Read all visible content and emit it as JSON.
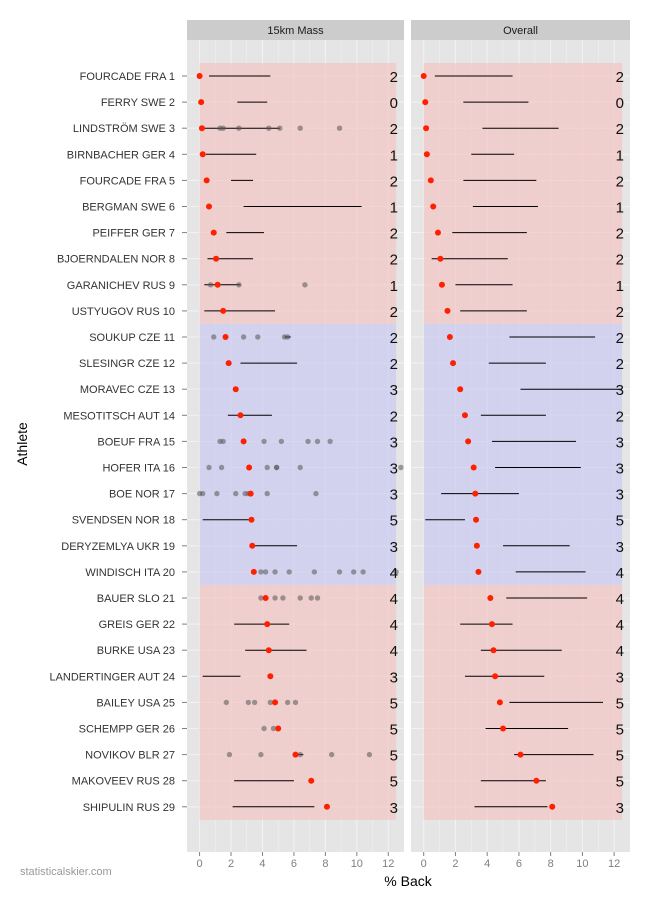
{
  "chart_data": {
    "type": "scatter",
    "title": "",
    "xlabel": "% Back",
    "ylabel": "Athlete",
    "xlim": [
      -0.8,
      13.0
    ],
    "xticks": [
      0,
      2,
      4,
      6,
      8,
      10,
      12
    ],
    "facets": [
      "15km Mass",
      "Overall"
    ],
    "legend": "none",
    "colors": {
      "panel_bg": "#e5e5e5",
      "grid": "#f2f2f2",
      "strip_bg": "#cccccc",
      "band_red": "#f4c2c2",
      "band_blue": "#c7c7f2",
      "highlight_point": "#ff2000",
      "past_point": "#555555",
      "range_line": "#000000"
    },
    "bands": [
      {
        "color": "red",
        "from_rank": 1,
        "to_rank": 10
      },
      {
        "color": "blue",
        "from_rank": 11,
        "to_rank": 20
      },
      {
        "color": "red",
        "from_rank": 21,
        "to_rank": 29
      }
    ],
    "athletes": [
      {
        "label": "FOURCADE FRA 1",
        "count": "2",
        "mass": {
          "value": 0.0,
          "range": [
            0.6,
            4.5
          ],
          "past": [
            0.0,
            0.0
          ]
        },
        "overall": {
          "value": 0.0,
          "range": [
            0.7,
            5.6
          ]
        }
      },
      {
        "label": "FERRY SWE 2",
        "count": "0",
        "mass": {
          "value": 0.1,
          "range": [
            2.4,
            4.3
          ],
          "past": []
        },
        "overall": {
          "value": 0.1,
          "range": [
            2.5,
            6.6
          ]
        }
      },
      {
        "label": "LINDSTRÖM SWE 3",
        "count": "2",
        "mass": {
          "value": 0.15,
          "range": [
            0.3,
            5.1
          ],
          "past": [
            0.15,
            1.3,
            1.5,
            2.5,
            4.4,
            5.1,
            6.4,
            8.9
          ]
        },
        "overall": {
          "value": 0.15,
          "range": [
            3.7,
            8.5
          ]
        }
      },
      {
        "label": "BIRNBACHER GER 4",
        "count": "1",
        "mass": {
          "value": 0.2,
          "range": [
            0.4,
            3.6
          ],
          "past": [
            0.2
          ]
        },
        "overall": {
          "value": 0.2,
          "range": [
            3.0,
            5.7
          ]
        }
      },
      {
        "label": "FOURCADE FRA 5",
        "count": "2",
        "mass": {
          "value": 0.45,
          "range": [
            2.0,
            3.4
          ],
          "past": [
            0.45
          ]
        },
        "overall": {
          "value": 0.45,
          "range": [
            2.5,
            7.1
          ]
        }
      },
      {
        "label": "BERGMAN SWE 6",
        "count": "1",
        "mass": {
          "value": 0.6,
          "range": [
            2.8,
            10.3
          ],
          "past": [
            0.6
          ]
        },
        "overall": {
          "value": 0.6,
          "range": [
            3.1,
            7.2
          ]
        }
      },
      {
        "label": "PEIFFER GER 7",
        "count": "2",
        "mass": {
          "value": 0.9,
          "range": [
            1.7,
            4.1
          ],
          "past": [
            0.9
          ]
        },
        "overall": {
          "value": 0.9,
          "range": [
            1.8,
            6.5
          ]
        }
      },
      {
        "label": "BJOERNDALEN NOR 8",
        "count": "2",
        "mass": {
          "value": 1.05,
          "range": [
            0.5,
            3.4
          ],
          "past": [
            1.05
          ]
        },
        "overall": {
          "value": 1.05,
          "range": [
            0.5,
            5.3
          ]
        }
      },
      {
        "label": "GARANICHEV RUS 9",
        "count": "1",
        "mass": {
          "value": 1.15,
          "range": [
            0.3,
            2.6
          ],
          "past": [
            0.7,
            1.15,
            2.5,
            6.7
          ]
        },
        "overall": {
          "value": 1.15,
          "range": [
            2.0,
            5.6
          ]
        }
      },
      {
        "label": "USTYUGOV RUS 10",
        "count": "2",
        "mass": {
          "value": 1.5,
          "range": [
            0.3,
            4.8
          ],
          "past": [
            1.5
          ]
        },
        "overall": {
          "value": 1.5,
          "range": [
            2.3,
            6.5
          ]
        }
      },
      {
        "label": "SOUKUP CZE 11",
        "count": "2",
        "mass": {
          "value": 1.65,
          "range": [
            5.4,
            5.8
          ],
          "past": [
            0.9,
            1.65,
            2.8,
            3.7,
            5.4,
            5.6
          ]
        },
        "overall": {
          "value": 1.65,
          "range": [
            5.4,
            10.8
          ]
        }
      },
      {
        "label": "SLESINGR CZE 12",
        "count": "2",
        "mass": {
          "value": 1.85,
          "range": [
            2.6,
            6.2
          ],
          "past": [
            1.85
          ]
        },
        "overall": {
          "value": 1.85,
          "range": [
            4.1,
            7.7
          ]
        }
      },
      {
        "label": "MORAVEC CZE 13",
        "count": "3",
        "mass": {
          "value": 2.3,
          "range": [
            2.3,
            2.3
          ],
          "past": [
            2.3
          ]
        },
        "overall": {
          "value": 2.3,
          "range": [
            6.1,
            12.5
          ]
        }
      },
      {
        "label": "MESOTITSCH AUT 14",
        "count": "2",
        "mass": {
          "value": 2.6,
          "range": [
            1.8,
            4.6
          ],
          "past": [
            2.6
          ]
        },
        "overall": {
          "value": 2.6,
          "range": [
            3.6,
            7.7
          ]
        }
      },
      {
        "label": "BOEUF FRA 15",
        "count": "3",
        "mass": {
          "value": 2.8,
          "range": [
            2.8,
            2.8
          ],
          "past": [
            1.3,
            1.5,
            2.8,
            4.1,
            5.2,
            6.9,
            7.5,
            8.3
          ]
        },
        "overall": {
          "value": 2.8,
          "range": [
            4.3,
            9.6
          ]
        }
      },
      {
        "label": "HOFER ITA 16",
        "count": "3",
        "mass": {
          "value": 3.15,
          "range": [
            3.15,
            3.15
          ],
          "past": [
            0.6,
            1.4,
            3.15,
            4.3,
            4.9,
            4.9,
            6.4,
            12.8
          ]
        },
        "overall": {
          "value": 3.15,
          "range": [
            4.5,
            9.9
          ]
        }
      },
      {
        "label": "BOE NOR 17",
        "count": "3",
        "mass": {
          "value": 3.25,
          "range": [
            3.25,
            3.25
          ],
          "past": [
            0.0,
            0.2,
            1.1,
            2.3,
            2.9,
            3.1,
            3.25,
            4.3,
            7.4
          ]
        },
        "overall": {
          "value": 3.25,
          "range": [
            1.1,
            6.0
          ]
        }
      },
      {
        "label": "SVENDSEN NOR 18",
        "count": "5",
        "mass": {
          "value": 3.3,
          "range": [
            0.2,
            3.4
          ],
          "past": [
            3.3
          ]
        },
        "overall": {
          "value": 3.3,
          "range": [
            0.1,
            2.6
          ]
        }
      },
      {
        "label": "DERYZEMLYA UKR 19",
        "count": "3",
        "mass": {
          "value": 3.35,
          "range": [
            3.2,
            6.2
          ],
          "past": [
            3.35
          ]
        },
        "overall": {
          "value": 3.35,
          "range": [
            5.0,
            9.2
          ]
        }
      },
      {
        "label": "WINDISCH ITA 20",
        "count": "4",
        "mass": {
          "value": 3.45,
          "range": [
            3.45,
            3.45
          ],
          "past": [
            3.45,
            3.9,
            4.2,
            4.8,
            5.7,
            7.3,
            8.9,
            9.8,
            10.4,
            12.5
          ]
        },
        "overall": {
          "value": 3.45,
          "range": [
            5.8,
            10.2
          ]
        }
      },
      {
        "label": "BAUER SLO 21",
        "count": "4",
        "mass": {
          "value": 4.2,
          "range": [
            4.0,
            4.3
          ],
          "past": [
            3.9,
            4.2,
            4.8,
            5.3,
            6.4,
            7.1,
            7.5
          ]
        },
        "overall": {
          "value": 4.2,
          "range": [
            5.2,
            10.3
          ]
        }
      },
      {
        "label": "GREIS GER 22",
        "count": "4",
        "mass": {
          "value": 4.3,
          "range": [
            2.2,
            5.7
          ],
          "past": [
            4.3
          ]
        },
        "overall": {
          "value": 4.3,
          "range": [
            2.3,
            5.6
          ]
        }
      },
      {
        "label": "BURKE USA 23",
        "count": "4",
        "mass": {
          "value": 4.4,
          "range": [
            2.9,
            6.8
          ],
          "past": [
            4.4
          ]
        },
        "overall": {
          "value": 4.4,
          "range": [
            3.6,
            8.7
          ]
        }
      },
      {
        "label": "LANDERTINGER AUT 24",
        "count": "3",
        "mass": {
          "value": 4.5,
          "range": [
            0.2,
            2.6
          ],
          "past": [
            4.5
          ]
        },
        "overall": {
          "value": 4.5,
          "range": [
            2.6,
            7.6
          ]
        }
      },
      {
        "label": "BAILEY USA 25",
        "count": "5",
        "mass": {
          "value": 4.8,
          "range": [
            4.8,
            4.8
          ],
          "past": [
            1.7,
            3.1,
            3.5,
            4.5,
            4.8,
            5.6,
            6.1
          ]
        },
        "overall": {
          "value": 4.8,
          "range": [
            5.4,
            11.3
          ]
        }
      },
      {
        "label": "SCHEMPP GER 26",
        "count": "5",
        "mass": {
          "value": 5.0,
          "range": [
            5.0,
            5.0
          ],
          "past": [
            4.1,
            4.7,
            5.0
          ]
        },
        "overall": {
          "value": 5.0,
          "range": [
            3.9,
            9.1
          ]
        }
      },
      {
        "label": "NOVIKOV BLR 27",
        "count": "5",
        "mass": {
          "value": 6.1,
          "range": [
            6.1,
            6.6
          ],
          "past": [
            1.9,
            3.9,
            6.1,
            6.4,
            8.4,
            10.8
          ]
        },
        "overall": {
          "value": 6.1,
          "range": [
            5.7,
            10.7
          ]
        }
      },
      {
        "label": "MAKOVEEV RUS 28",
        "count": "5",
        "mass": {
          "value": 7.1,
          "range": [
            2.2,
            6.0
          ],
          "past": [
            7.1
          ]
        },
        "overall": {
          "value": 7.1,
          "range": [
            3.6,
            7.7
          ]
        }
      },
      {
        "label": "SHIPULIN RUS 29",
        "count": "3",
        "mass": {
          "value": 8.1,
          "range": [
            2.1,
            7.3
          ],
          "past": [
            8.1
          ]
        },
        "overall": {
          "value": 8.1,
          "range": [
            3.2,
            7.8
          ]
        }
      }
    ]
  },
  "credit": "statisticalskier.com"
}
